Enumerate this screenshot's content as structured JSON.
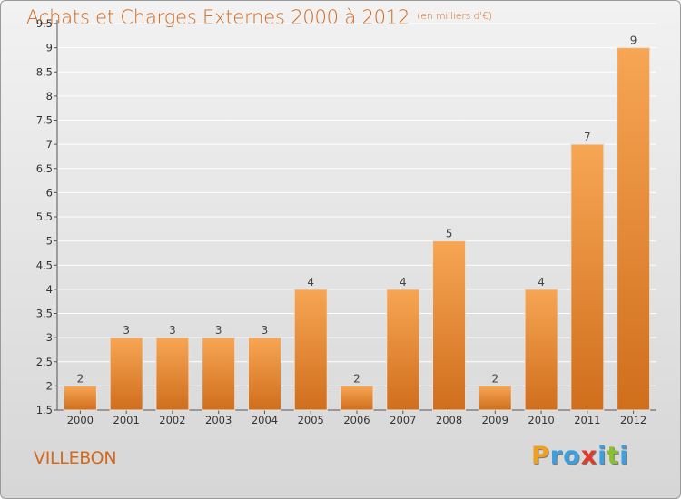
{
  "header": {
    "title": "Achats et Charges Externes 2000 à 2012",
    "subtitle": "(en milliers d'€)"
  },
  "footer": {
    "city": "VILLEBON",
    "brand": "Proxiti",
    "brand_letters": [
      {
        "ch": "P",
        "color": "#f0a020"
      },
      {
        "ch": "r",
        "color": "#3aa0e0"
      },
      {
        "ch": "o",
        "color": "#3aa0e0"
      },
      {
        "ch": "x",
        "color": "#e03a2a"
      },
      {
        "ch": "i",
        "color": "#3aa0e0"
      },
      {
        "ch": "t",
        "color": "#8ac030"
      },
      {
        "ch": "i",
        "color": "#3aa0e0"
      }
    ]
  },
  "colors": {
    "bar_top": "#f7a654",
    "bar_bottom": "#d06e1c",
    "grid": "#ffffff",
    "title": "#d2691e"
  },
  "chart_data": {
    "type": "bar",
    "title": "Achats et Charges Externes 2000 à 2012",
    "subtitle": "(en milliers d'€)",
    "categories": [
      "2000",
      "2001",
      "2002",
      "2003",
      "2004",
      "2005",
      "2006",
      "2007",
      "2008",
      "2009",
      "2010",
      "2011",
      "2012"
    ],
    "values": [
      2,
      3,
      3,
      3,
      3,
      4,
      2,
      4,
      5,
      2,
      4,
      7,
      9
    ],
    "ylim": [
      1.5,
      9.5
    ],
    "yticks": [
      "1.5",
      "2",
      "2.5",
      "3",
      "3.5",
      "4",
      "4.5",
      "5",
      "5.5",
      "6",
      "6.5",
      "7",
      "7.5",
      "8",
      "8.5",
      "9",
      "9.5"
    ],
    "grid": true,
    "xlabel": "",
    "ylabel": ""
  }
}
